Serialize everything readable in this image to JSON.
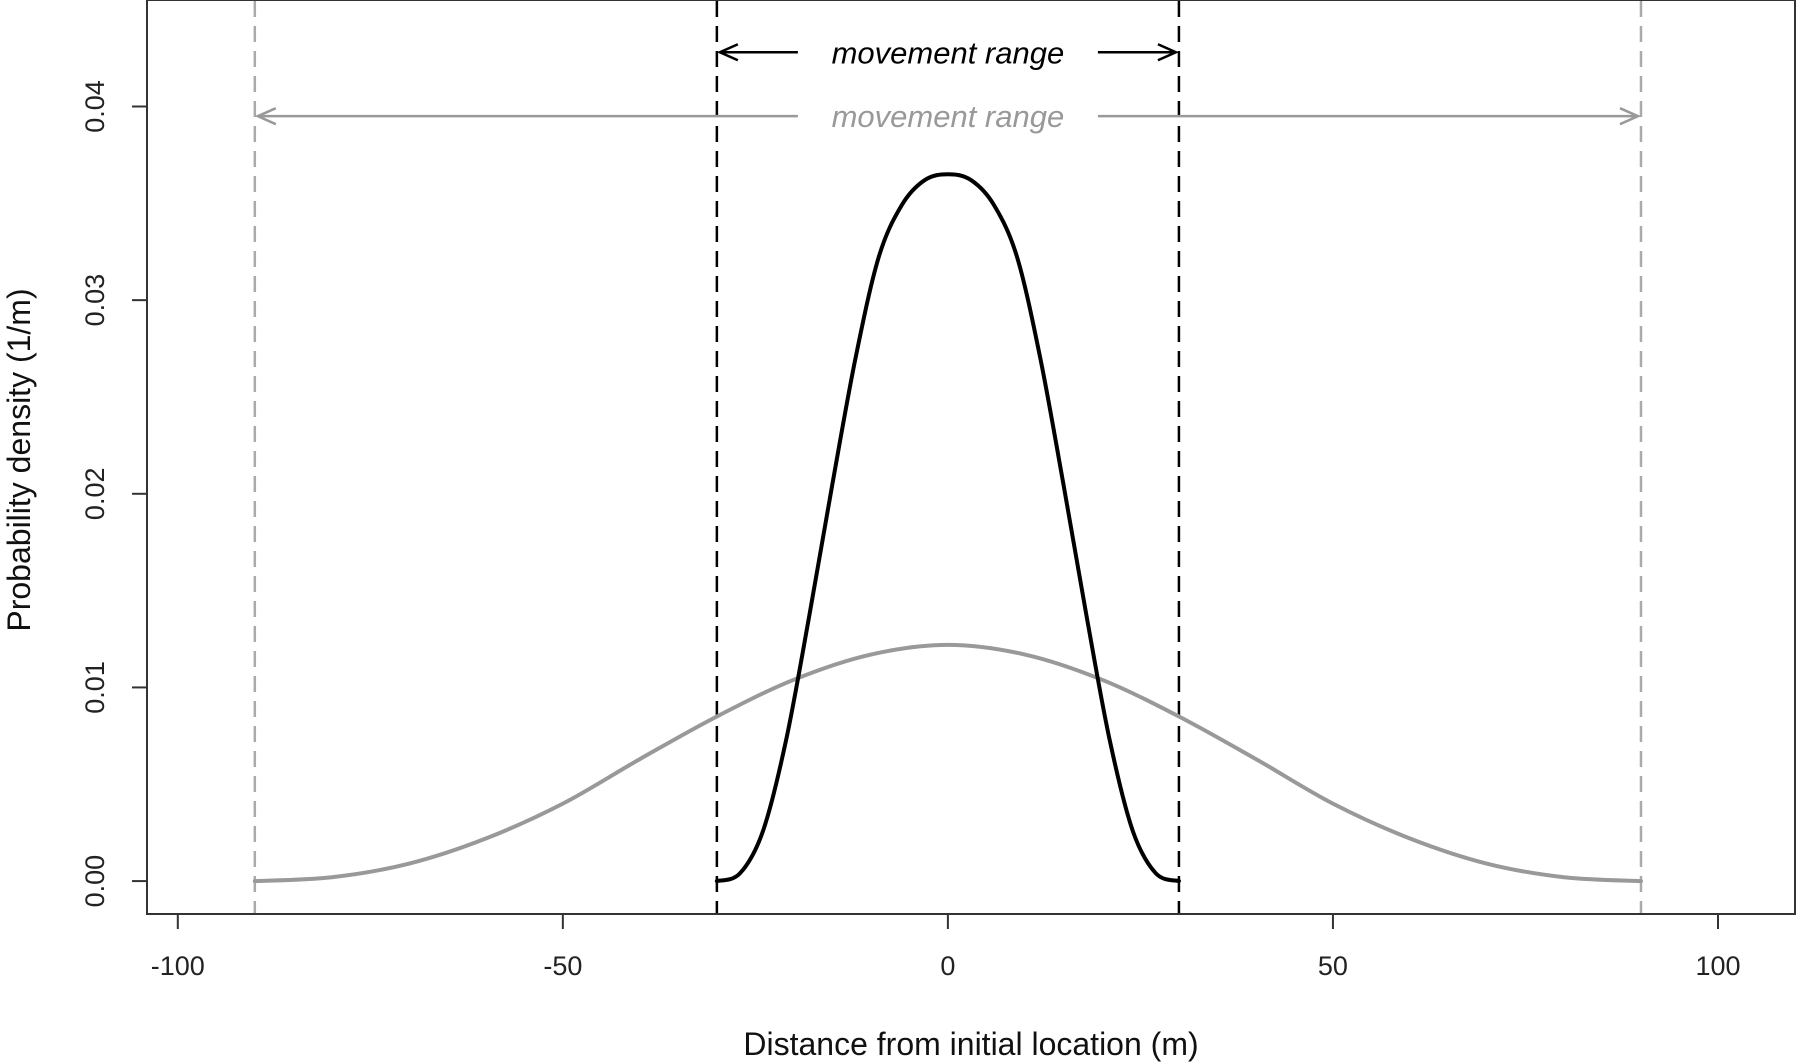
{
  "chart_data": {
    "type": "line",
    "xlabel": "Distance from initial location (m)",
    "ylabel": "Probability density (1/m)",
    "xlim": [
      -104,
      110
    ],
    "ylim": [
      -0.0017,
      0.0455
    ],
    "xticks": [
      -100,
      -50,
      0,
      50,
      100
    ],
    "xtick_labels": [
      "-100",
      "-50",
      "0",
      "50",
      "100"
    ],
    "yticks": [
      0.0,
      0.01,
      0.02,
      0.03,
      0.04
    ],
    "ytick_labels": [
      "0.00",
      "0.01",
      "0.02",
      "0.03",
      "0.04"
    ],
    "grid": false,
    "series": [
      {
        "color": "#000000",
        "support": [
          -30,
          30
        ],
        "x": [
          -30,
          -27,
          -24,
          -21,
          -18,
          -15,
          -12,
          -9,
          -6,
          -3,
          0,
          3,
          6,
          9,
          12,
          15,
          18,
          21,
          24,
          27,
          30
        ],
        "y": [
          0.0,
          0.0004,
          0.0026,
          0.0073,
          0.0137,
          0.0205,
          0.027,
          0.0322,
          0.0349,
          0.0362,
          0.0365,
          0.0362,
          0.0349,
          0.0322,
          0.027,
          0.0205,
          0.0137,
          0.0073,
          0.0026,
          0.0004,
          0.0
        ]
      },
      {
        "color": "#999999",
        "support": [
          -90,
          90
        ],
        "x": [
          -90,
          -80,
          -70,
          -60,
          -50,
          -40,
          -30,
          -20,
          -10,
          0,
          10,
          20,
          30,
          40,
          50,
          60,
          70,
          80,
          90
        ],
        "y": [
          0.0,
          0.0002,
          0.0009,
          0.0022,
          0.004,
          0.0063,
          0.0085,
          0.0104,
          0.0117,
          0.0122,
          0.0117,
          0.0104,
          0.0085,
          0.0063,
          0.004,
          0.0022,
          0.0009,
          0.0002,
          0.0
        ]
      }
    ],
    "vlines": [
      {
        "x": -30,
        "color": "#000000",
        "style": "dashed"
      },
      {
        "x": 30,
        "color": "#000000",
        "style": "dashed"
      },
      {
        "x": -90,
        "color": "#aaaaaa",
        "style": "dashed"
      },
      {
        "x": 90,
        "color": "#aaaaaa",
        "style": "dashed"
      }
    ],
    "annotations": [
      {
        "text": "movement range",
        "from": -30,
        "to": 30,
        "y": 0.0428,
        "color": "#000000"
      },
      {
        "text": "movement range",
        "from": -90,
        "to": 90,
        "y": 0.0395,
        "color": "#999999"
      }
    ]
  }
}
